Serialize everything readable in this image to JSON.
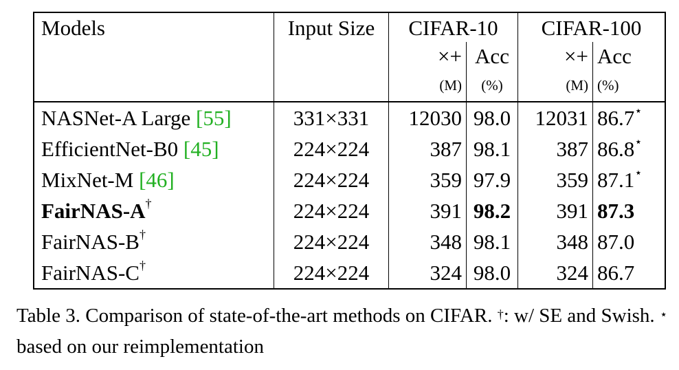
{
  "table": {
    "header": {
      "models": "Models",
      "input_size": "Input Size",
      "cifar10": "CIFAR-10",
      "cifar100": "CIFAR-100",
      "mult_add": "×+",
      "acc": "Acc",
      "unit_m": "(M)",
      "unit_pct": "(%)"
    },
    "rows": [
      {
        "model": "NASNet-A Large ",
        "cite": "[55]",
        "mark": "",
        "input": "331×331",
        "c10_madd": "12030",
        "c10_acc": "98.0",
        "c100_madd": "12031",
        "c100_acc": "86.7",
        "acc_mark": "⋆"
      },
      {
        "model": "EfficientNet-B0 ",
        "cite": "[45]",
        "mark": "",
        "input": "224×224",
        "c10_madd": "387",
        "c10_acc": "98.1",
        "c100_madd": "387",
        "c100_acc": "86.8",
        "acc_mark": "⋆"
      },
      {
        "model": "MixNet-M ",
        "cite": "[46]",
        "mark": "",
        "input": "224×224",
        "c10_madd": "359",
        "c10_acc": "97.9",
        "c100_madd": "359",
        "c100_acc": "87.1",
        "acc_mark": "⋆"
      },
      {
        "model": "FairNAS-A",
        "cite": "",
        "mark": "†",
        "input": "224×224",
        "c10_madd": "391",
        "c10_acc": "98.2",
        "c100_madd": "391",
        "c100_acc": "87.3",
        "acc_mark": ""
      },
      {
        "model": "FairNAS-B",
        "cite": "",
        "mark": "†",
        "input": "224×224",
        "c10_madd": "348",
        "c10_acc": "98.1",
        "c100_madd": "348",
        "c100_acc": "87.0",
        "acc_mark": ""
      },
      {
        "model": "FairNAS-C",
        "cite": "",
        "mark": "†",
        "input": "224×224",
        "c10_madd": "324",
        "c10_acc": "98.0",
        "c100_madd": "324",
        "c100_acc": "86.7",
        "acc_mark": ""
      }
    ]
  },
  "caption": {
    "text1": "Table 3. Comparison of state-of-the-art methods on CIFAR. ",
    "dagger": "†",
    "text2": ": w/ SE and Swish. ",
    "star": "⋆",
    "text3": " based on our reimplementation"
  }
}
